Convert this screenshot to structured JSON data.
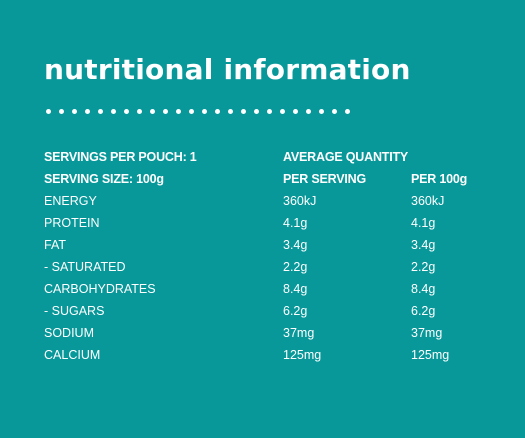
{
  "title": "nutritional information",
  "header": {
    "row1": {
      "col1": "SERVINGS PER POUCH: 1",
      "col2": "AVERAGE QUANTITY",
      "col3": ""
    },
    "row2": {
      "col1": "SERVING SIZE: 100g",
      "col2": "PER SERVING",
      "col3": "PER 100g"
    }
  },
  "rows": [
    {
      "nutrient": "ENERGY",
      "per_serving": "360kJ",
      "per_100g": "360kJ"
    },
    {
      "nutrient": "PROTEIN",
      "per_serving": "4.1g",
      "per_100g": "4.1g"
    },
    {
      "nutrient": "FAT",
      "per_serving": "3.4g",
      "per_100g": "3.4g"
    },
    {
      "nutrient": "- SATURATED",
      "per_serving": "2.2g",
      "per_100g": "2.2g"
    },
    {
      "nutrient": "CARBOHYDRATES",
      "per_serving": "8.4g",
      "per_100g": "8.4g"
    },
    {
      "nutrient": "- SUGARS",
      "per_serving": "6.2g",
      "per_100g": "6.2g"
    },
    {
      "nutrient": "SODIUM",
      "per_serving": "37mg",
      "per_100g": "37mg"
    },
    {
      "nutrient": "CALCIUM",
      "per_serving": "125mg",
      "per_100g": "125mg"
    }
  ],
  "colors": {
    "background": "#08989a",
    "text": "#ffffff"
  }
}
